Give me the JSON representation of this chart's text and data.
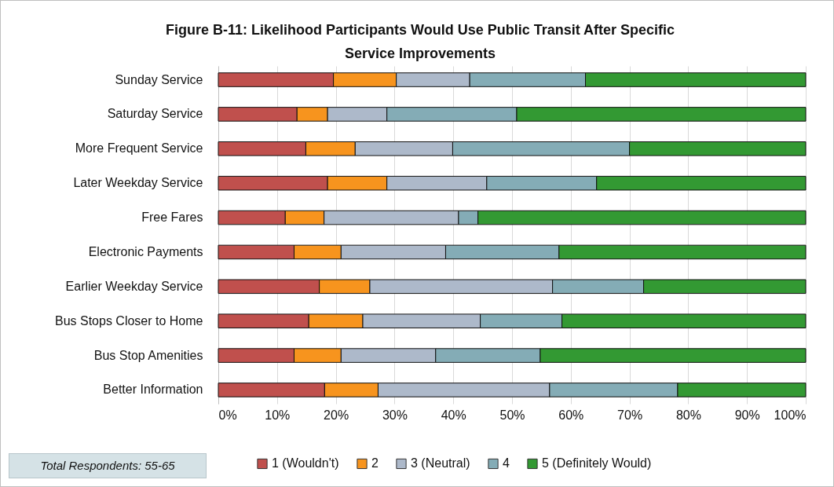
{
  "chart_data": {
    "type": "bar",
    "orientation": "horizontal",
    "stacked": true,
    "title": "Figure B-11: Likelihood Participants Would Use Public Transit After Specific Service Improvements",
    "categories": [
      "Sunday Service",
      "Saturday Service",
      "More Frequent Service",
      "Later Weekday Service",
      "Free Fares",
      "Electronic Payments",
      "Earlier Weekday Service",
      "Bus Stops Closer to Home",
      "Bus Stop Amenities",
      "Better Information"
    ],
    "series": [
      {
        "name": "1 (Wouldn't)",
        "color": "#c0504d",
        "values": [
          19.6,
          13.4,
          14.9,
          18.6,
          11.4,
          12.9,
          17.2,
          15.4,
          12.9,
          18.1
        ]
      },
      {
        "name": "2",
        "color": "#f7941e",
        "values": [
          10.7,
          5.2,
          8.4,
          10.1,
          6.6,
          8.0,
          8.6,
          9.2,
          8.0,
          9.1
        ]
      },
      {
        "name": "3 (Neutral)",
        "color": "#adb9ca",
        "values": [
          12.5,
          10.1,
          16.6,
          17.0,
          22.9,
          17.8,
          31.1,
          20.0,
          16.1,
          29.2
        ]
      },
      {
        "name": "4",
        "color": "#84acb6",
        "values": [
          19.7,
          22.1,
          30.1,
          18.7,
          3.3,
          19.3,
          15.5,
          13.9,
          17.8,
          21.8
        ]
      },
      {
        "name": "5 (Definitely Would)",
        "color": "#339933",
        "values": [
          37.5,
          49.2,
          30.0,
          35.6,
          55.8,
          42.0,
          27.6,
          41.5,
          45.2,
          21.8
        ]
      }
    ],
    "xlim": [
      0,
      100
    ],
    "xticks": [
      {
        "value": 0,
        "label": "0%"
      },
      {
        "value": 10,
        "label": "10%"
      },
      {
        "value": 20,
        "label": "20%"
      },
      {
        "value": 30,
        "label": "30%"
      },
      {
        "value": 40,
        "label": "40%"
      },
      {
        "value": 50,
        "label": "50%"
      },
      {
        "value": 60,
        "label": "60%"
      },
      {
        "value": 70,
        "label": "70%"
      },
      {
        "value": 80,
        "label": "80%"
      },
      {
        "value": 90,
        "label": "90%"
      },
      {
        "value": 100,
        "label": "100%"
      }
    ],
    "grid": "x",
    "legend": "bottom",
    "annotations": [
      "Total Respondents: 55-65"
    ]
  }
}
